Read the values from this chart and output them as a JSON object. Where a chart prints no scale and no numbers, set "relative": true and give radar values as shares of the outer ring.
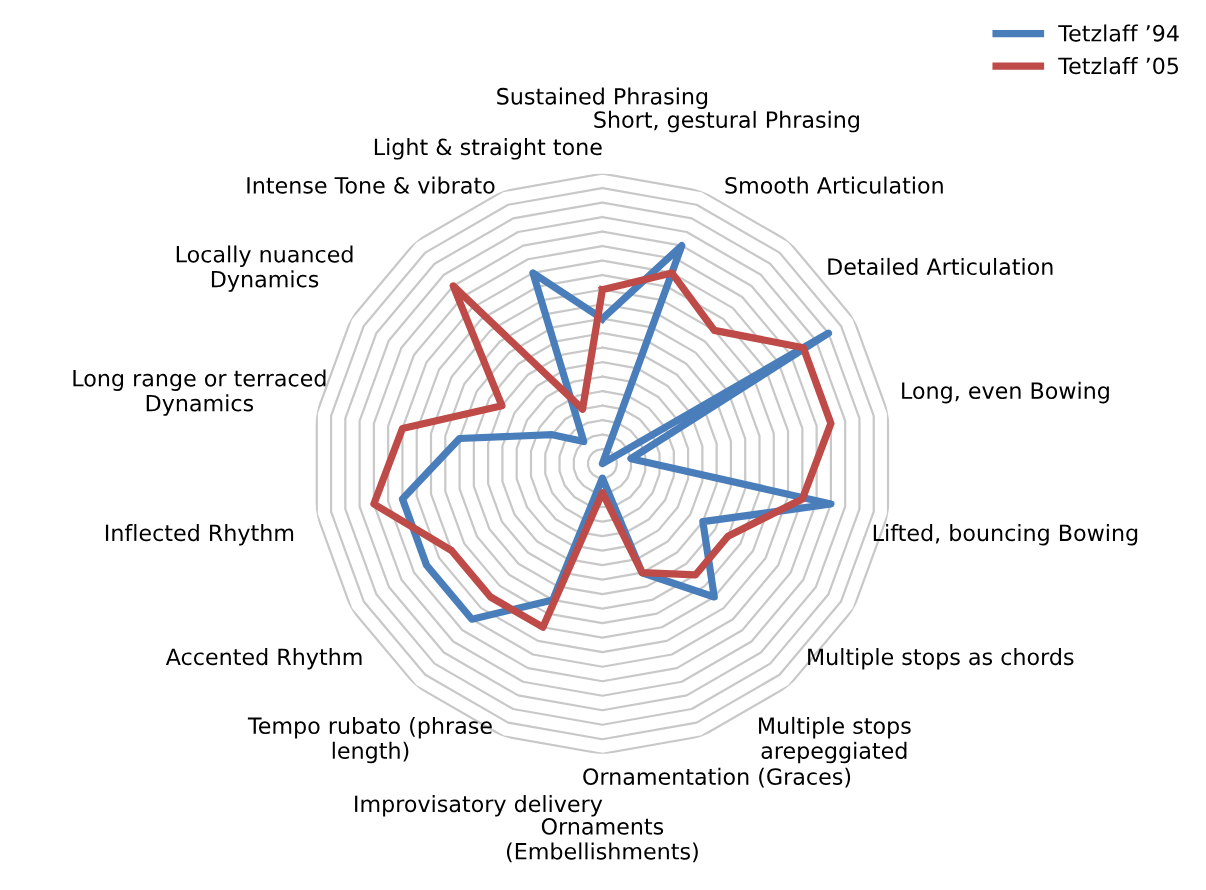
{
  "chart_data": {
    "type": "radar",
    "relative": true,
    "grid": true,
    "legend": "top right",
    "categories": [
      "Sustained Phrasing",
      "Short, gestural Phrasing",
      "Smooth Articulation",
      "Detailed Articulation",
      "Long, even Bowing",
      "Lifted, bouncing Bowing",
      "Multiple stops as chords",
      "Multiple stops\narepeggiated",
      "Ornamentation (Graces)",
      "Ornaments\n(Embellishments)",
      "Improvisatory delivery",
      "Tempo rubato (phrase\nlength)",
      "Accented Rhythm",
      "Inflected Rhythm",
      "Long range or terraced\nDynamics",
      "Locally nuanced\nDynamics",
      "Intense Tone & vibrato",
      "Light & straight tone"
    ],
    "series": [
      {
        "name": "Tetzlaff ’94",
        "color": "#4a7ebb",
        "values": [
          0.5,
          0.8,
          0.0,
          0.9,
          0.1,
          0.8,
          0.4,
          0.6,
          0.4,
          0.05,
          0.5,
          0.7,
          0.7,
          0.7,
          0.5,
          0.2,
          0.1,
          0.7
        ]
      },
      {
        "name": "Tetzlaff ’05",
        "color": "#be4b48",
        "values": [
          0.6,
          0.7,
          0.6,
          0.8,
          0.8,
          0.7,
          0.5,
          0.5,
          0.4,
          0.1,
          0.6,
          0.6,
          0.6,
          0.8,
          0.7,
          0.4,
          0.8,
          0.2
        ]
      }
    ]
  }
}
